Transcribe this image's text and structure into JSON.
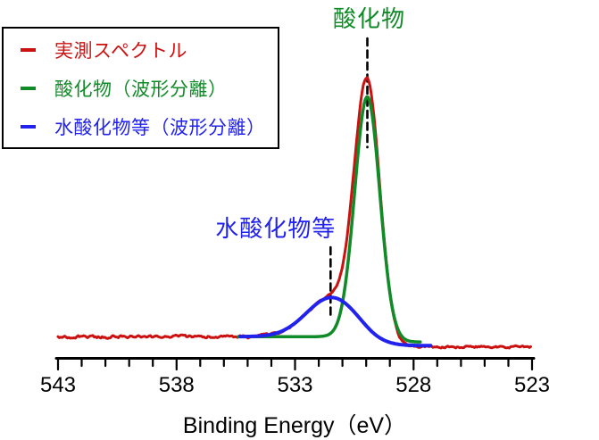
{
  "legend": {
    "items": [
      {
        "label": "実測スペクトル",
        "color": "#cc1111"
      },
      {
        "label": "酸化物（波形分離）",
        "color": "#118a28"
      },
      {
        "label": "水酸化物等（波形分離）",
        "color": "#2222ee"
      }
    ]
  },
  "chart_data": {
    "type": "line",
    "title": "",
    "xlabel": "Binding Energy（eV）",
    "ylabel": "",
    "x_axis": {
      "min": 523,
      "max": 543,
      "reversed": true,
      "major_ticks": [
        543,
        538,
        533,
        528,
        523
      ],
      "minor_tick_step_eV": 1
    },
    "y_axis": {
      "visible": false,
      "units": "intensity (arbitrary units)"
    },
    "background_step": {
      "high_BE_level": 0.042,
      "low_BE_level": 0.0,
      "step_center_eV": 530.0,
      "step_width_eV": 0.35
    },
    "series": [
      {
        "name": "実測スペクトル",
        "color": "#cc1111",
        "kind": "measured",
        "draw_range_eV": [
          543.0,
          523.05
        ],
        "baseline_step_rel": 0.0425,
        "oxide_scale": 1.03,
        "hydroxide_scale": 1.0,
        "noise_amplitude_rel": 0.007
      },
      {
        "name": "酸化物（波形分離）",
        "color": "#118a28",
        "kind": "fit",
        "peak_center_eV": 529.95,
        "fwhm_eV": 1.25,
        "height_rel": 1.0,
        "baseline_step_rel": 0.022,
        "draw_range_eV": [
          535.4,
          527.7
        ]
      },
      {
        "name": "水酸化物等（波形分離）",
        "color": "#2222ee",
        "kind": "fit",
        "peak_center_eV": 531.45,
        "fwhm_eV": 2.5,
        "height_rel": 0.162,
        "baseline_step_rel": 0.037,
        "draw_range_eV": [
          535.3,
          527.25
        ]
      }
    ],
    "annotations": [
      {
        "text": "酸化物",
        "color": "#118a28",
        "line_eV": 529.95,
        "align": "center"
      },
      {
        "text": "水酸化物等",
        "color": "#2222ee",
        "line_eV": 531.5,
        "align": "right"
      }
    ]
  }
}
